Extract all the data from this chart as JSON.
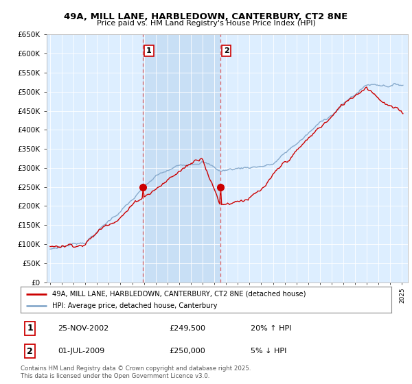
{
  "title": "49A, MILL LANE, HARBLEDOWN, CANTERBURY, CT2 8NE",
  "subtitle": "Price paid vs. HM Land Registry's House Price Index (HPI)",
  "legend_line1": "49A, MILL LANE, HARBLEDOWN, CANTERBURY, CT2 8NE (detached house)",
  "legend_line2": "HPI: Average price, detached house, Canterbury",
  "footer": "Contains HM Land Registry data © Crown copyright and database right 2025.\nThis data is licensed under the Open Government Licence v3.0.",
  "transaction1_date": "25-NOV-2002",
  "transaction1_price": "£249,500",
  "transaction1_hpi": "20% ↑ HPI",
  "transaction2_date": "01-JUL-2009",
  "transaction2_price": "£250,000",
  "transaction2_hpi": "5% ↓ HPI",
  "ylim": [
    0,
    650000
  ],
  "ytick_step": 50000,
  "xmin": 1994.7,
  "xmax": 2025.5,
  "vline1_x": 2002.9,
  "vline2_x": 2009.5,
  "marker1_x": 2002.9,
  "marker1_y": 249500,
  "marker2_x": 2009.5,
  "marker2_y": 250000,
  "plot_bg_color": "#ddeeff",
  "highlight_color": "#c8dff5",
  "red_color": "#cc0000",
  "blue_color": "#88aacc",
  "vline_color": "#dd5555",
  "grid_color": "#cccccc"
}
